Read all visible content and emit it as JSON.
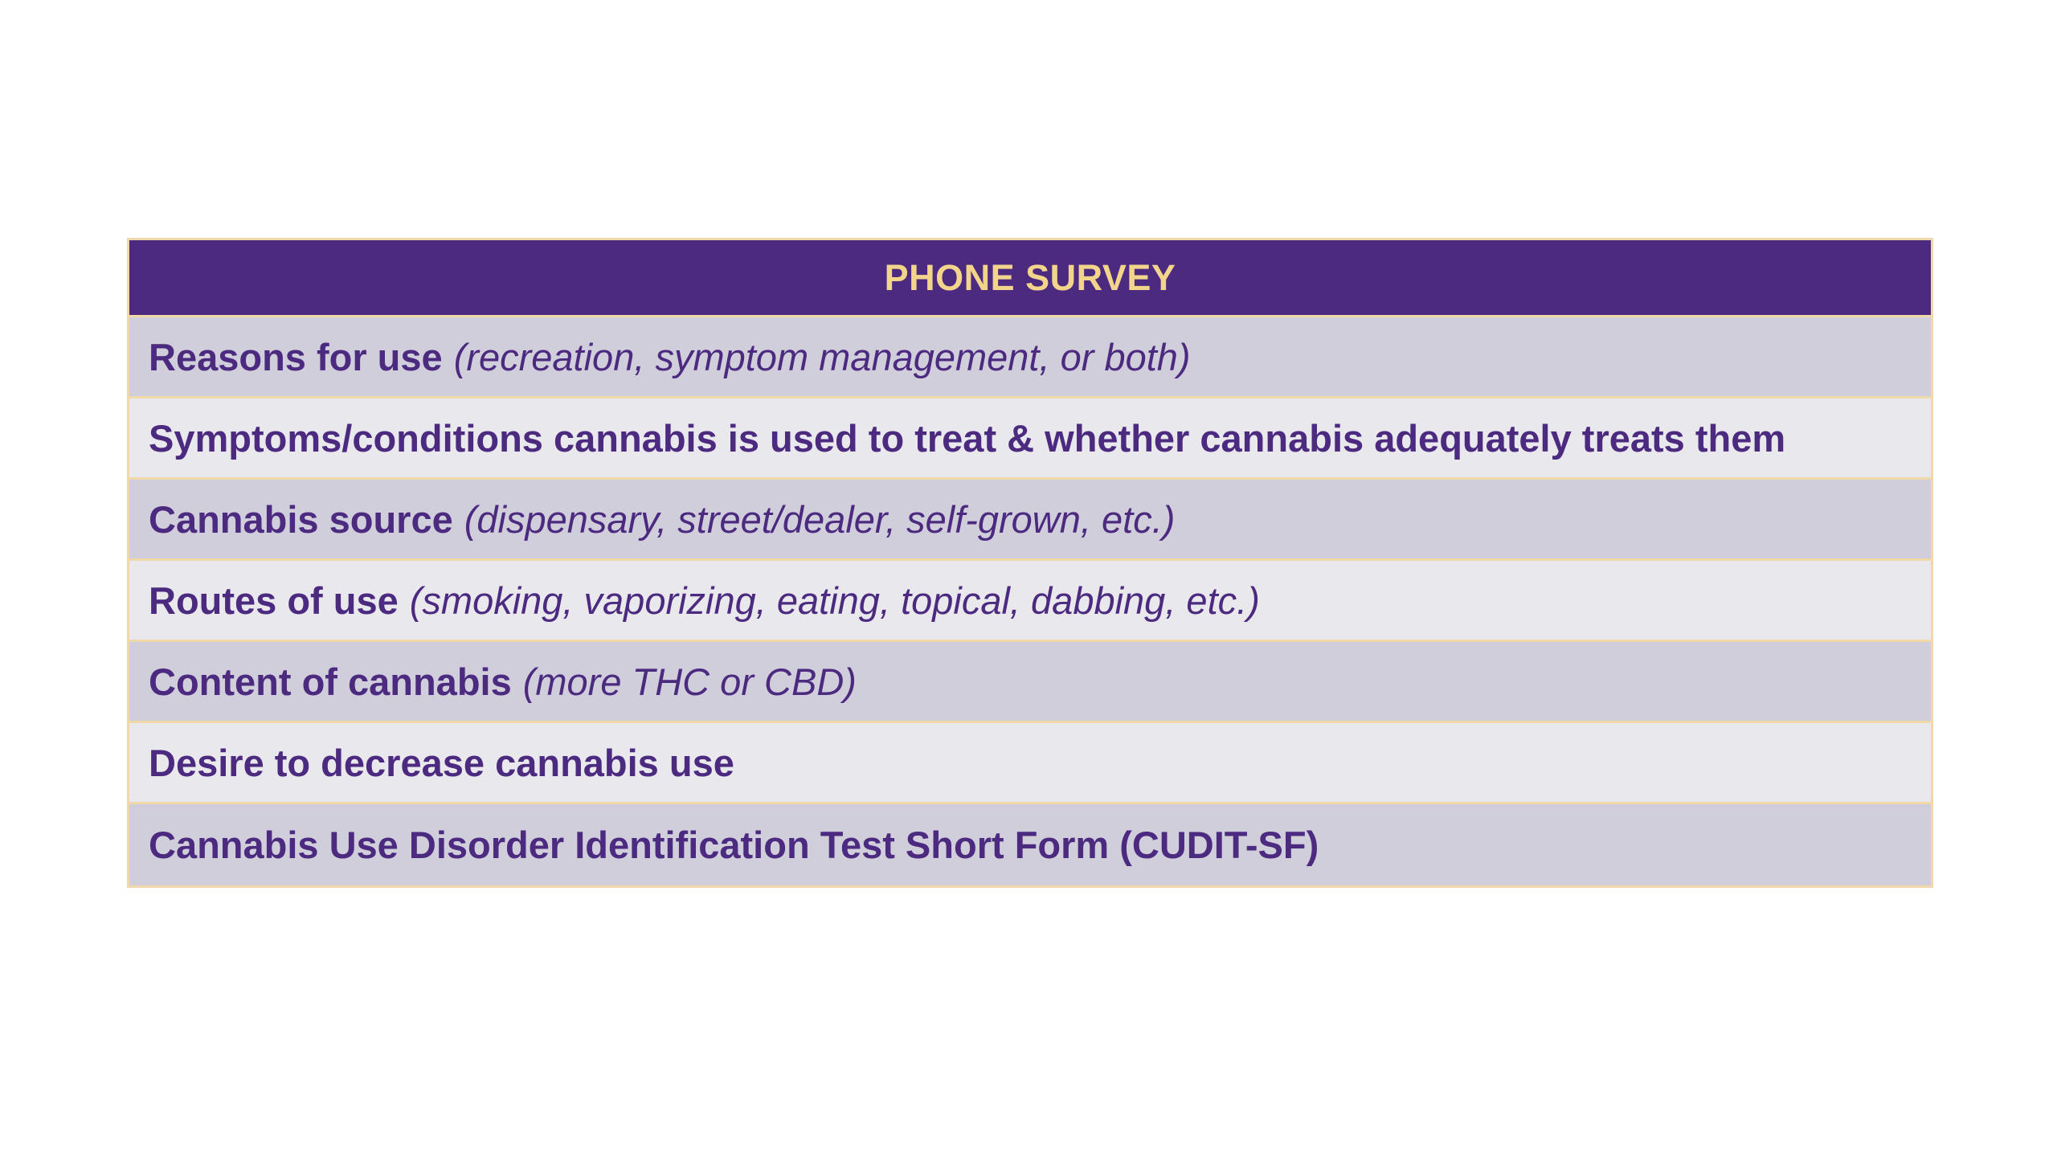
{
  "table": {
    "header": "PHONE SURVEY",
    "rows": [
      {
        "label": "Reasons for use",
        "detail": "(recreation, symptom management, or both)"
      },
      {
        "label": "Symptoms/conditions cannabis is used to treat & whether cannabis adequately treats them",
        "detail": ""
      },
      {
        "label": "Cannabis source",
        "detail": "(dispensary, street/dealer, self-grown, etc.)"
      },
      {
        "label": "Routes of use",
        "detail": "(smoking, vaporizing, eating, topical, dabbing, etc.)"
      },
      {
        "label": "Content of cannabis",
        "detail": "(more THC or CBD)"
      },
      {
        "label": "Desire to decrease cannabis use",
        "detail": ""
      },
      {
        "label": "Cannabis Use Disorder Identification Test Short Form (CUDIT-SF)",
        "detail": ""
      }
    ]
  },
  "colors": {
    "header_bg": "#4b2a80",
    "header_text": "#f2d48a",
    "row_text": "#4b2a80",
    "row_dark": "#d1cedb",
    "row_light": "#e9e8ec",
    "border": "#f0d8a8"
  }
}
